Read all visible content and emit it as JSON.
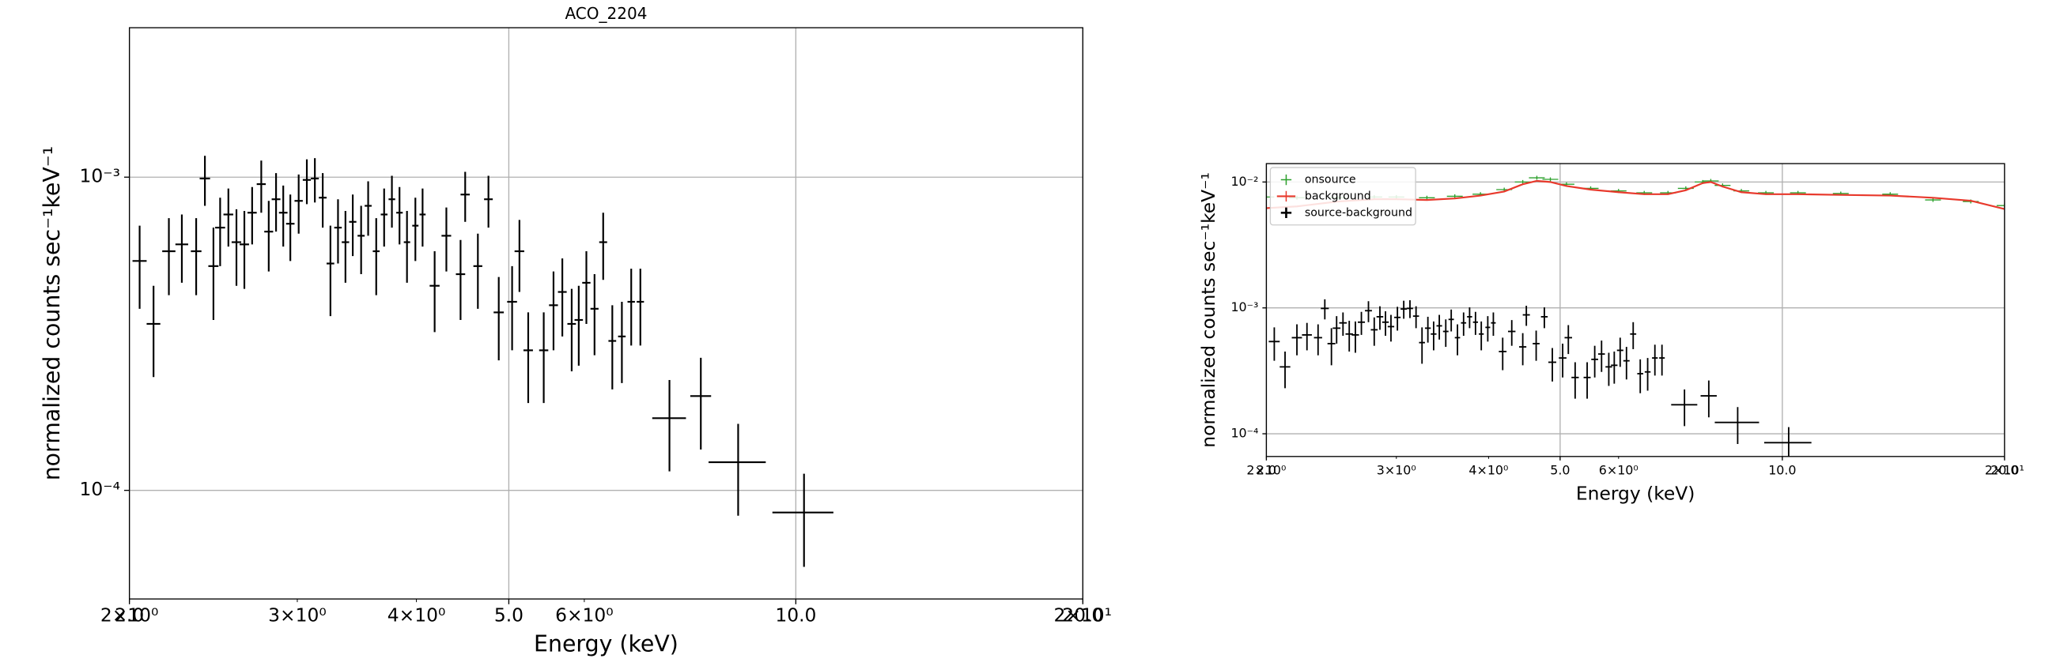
{
  "chart_data": [
    {
      "type": "errorbar",
      "title": "ACO_2204",
      "xlabel": "Energy (keV)",
      "ylabel": "normalized counts sec⁻¹keV⁻¹",
      "log_x": true,
      "log_y": true,
      "grid": true,
      "xlim": [
        2,
        20
      ],
      "ylim": [
        4.5e-05,
        0.003
      ],
      "xticks": [
        {
          "value": 2,
          "label": "2.0"
        },
        {
          "value": 5,
          "label": "5.0"
        },
        {
          "value": 10,
          "label": "10.0"
        },
        {
          "value": 20,
          "label": "20.0"
        }
      ],
      "xminor_ticks": [
        {
          "value": 2,
          "label": "2×10⁰"
        },
        {
          "value": 3,
          "label": "3×10⁰"
        },
        {
          "value": 4,
          "label": "4×10⁰"
        },
        {
          "value": 6,
          "label": "6×10⁰"
        },
        {
          "value": 20,
          "label": "2×10¹"
        }
      ],
      "yticks": [
        {
          "value": 0.001,
          "label": "10⁻³"
        },
        {
          "value": 0.0001,
          "label": "10⁻⁴"
        }
      ],
      "series": [
        {
          "kind": "errorbar",
          "color": "#000000",
          "x": [
            2.05,
            2.12,
            2.2,
            2.27,
            2.35,
            2.4,
            2.45,
            2.49,
            2.54,
            2.59,
            2.64,
            2.69,
            2.75,
            2.8,
            2.85,
            2.9,
            2.95,
            3.01,
            3.07,
            3.13,
            3.19,
            3.25,
            3.31,
            3.37,
            3.43,
            3.5,
            3.56,
            3.63,
            3.7,
            3.77,
            3.84,
            3.91,
            3.99,
            4.06,
            4.18,
            4.3,
            4.45,
            4.5,
            4.64,
            4.76,
            4.88,
            5.04,
            5.13,
            5.24,
            5.44,
            5.57,
            5.69,
            5.82,
            5.92,
            6.03,
            6.15,
            6.28,
            6.42,
            6.57,
            6.72,
            6.87,
            7.37,
            7.95,
            8.7,
            10.2
          ],
          "values": [
            0.00054,
            0.00034,
            0.00058,
            0.00061,
            0.00058,
            0.00099,
            0.00052,
            0.00069,
            0.00076,
            0.00062,
            0.00061,
            0.00077,
            0.00095,
            0.00067,
            0.00085,
            0.00077,
            0.00071,
            0.00084,
            0.00098,
            0.00099,
            0.00086,
            0.00053,
            0.00069,
            0.00062,
            0.00072,
            0.00065,
            0.00081,
            0.00058,
            0.00076,
            0.00085,
            0.00077,
            0.00062,
            0.0007,
            0.00076,
            0.00045,
            0.00065,
            0.00049,
            0.00088,
            0.00052,
            0.00085,
            0.00037,
            0.0004,
            0.00058,
            0.00028,
            0.00028,
            0.00039,
            0.00043,
            0.00034,
            0.00035,
            0.00046,
            0.00038,
            0.00062,
            0.0003,
            0.00031,
            0.0004,
            0.0004,
            0.00017,
            0.0002,
            0.000123,
            8.5e-05
          ],
          "yerr": [
            0.00016,
            0.00011,
            0.00016,
            0.00015,
            0.00016,
            0.00018,
            0.00017,
            0.00017,
            0.00016,
            0.00017,
            0.00017,
            0.00016,
            0.00018,
            0.00017,
            0.00018,
            0.00017,
            0.00017,
            0.00018,
            0.00016,
            0.00016,
            0.00017,
            0.00017,
            0.00016,
            0.00016,
            0.00016,
            0.00016,
            0.00016,
            0.00016,
            0.00016,
            0.00016,
            0.00016,
            0.00016,
            0.00016,
            0.00016,
            0.00013,
            0.00015,
            0.00014,
            0.00016,
            0.00014,
            0.00016,
            0.00011,
            0.00012,
            0.00015,
            9e-05,
            9e-05,
            0.00011,
            0.00012,
            0.0001,
            0.0001,
            0.00012,
            0.00011,
            0.00015,
            9e-05,
            9e-05,
            0.00011,
            0.00011,
            5.5e-05,
            6.5e-05,
            4e-05,
            2.8e-05
          ],
          "xerr": [
            0.035,
            0.035,
            0.035,
            0.035,
            0.03,
            0.03,
            0.03,
            0.03,
            0.03,
            0.03,
            0.03,
            0.03,
            0.03,
            0.03,
            0.03,
            0.03,
            0.03,
            0.03,
            0.03,
            0.03,
            0.03,
            0.03,
            0.03,
            0.03,
            0.03,
            0.03,
            0.03,
            0.03,
            0.03,
            0.03,
            0.03,
            0.03,
            0.03,
            0.03,
            0.05,
            0.05,
            0.05,
            0.05,
            0.05,
            0.05,
            0.06,
            0.06,
            0.06,
            0.06,
            0.06,
            0.06,
            0.06,
            0.06,
            0.06,
            0.06,
            0.06,
            0.06,
            0.06,
            0.06,
            0.06,
            0.06,
            0.3,
            0.2,
            0.6,
            0.75
          ]
        }
      ]
    },
    {
      "type": "errorbar",
      "xlabel": "Energy (keV)",
      "ylabel": "normalized counts sec⁻¹keV⁻¹",
      "log_x": true,
      "log_y": true,
      "grid": true,
      "legend": "upper left",
      "xlim": [
        2,
        20
      ],
      "ylim": [
        6.6e-05,
        0.014
      ],
      "xticks": [
        {
          "value": 2,
          "label": "2.0"
        },
        {
          "value": 5,
          "label": "5.0"
        },
        {
          "value": 10,
          "label": "10.0"
        },
        {
          "value": 20,
          "label": "20.0"
        }
      ],
      "xminor_ticks": [
        {
          "value": 2,
          "label": "2×10⁰"
        },
        {
          "value": 3,
          "label": "3×10⁰"
        },
        {
          "value": 4,
          "label": "4×10⁰"
        },
        {
          "value": 6,
          "label": "6×10⁰"
        },
        {
          "value": 20,
          "label": "2×10¹"
        }
      ],
      "yticks": [
        {
          "value": 0.01,
          "label": "10⁻²"
        },
        {
          "value": 0.001,
          "label": "10⁻³"
        },
        {
          "value": 0.0001,
          "label": "10⁻⁴"
        }
      ],
      "series": [
        {
          "name": "onsource",
          "kind": "marker",
          "color": "#2ca02c",
          "x": [
            2.0,
            2.2,
            2.5,
            2.8,
            3.0,
            3.3,
            3.6,
            3.9,
            4.2,
            4.45,
            4.65,
            4.85,
            5.1,
            5.5,
            6.0,
            6.5,
            7.0,
            7.4,
            7.8,
            8.0,
            8.3,
            8.8,
            9.5,
            10.5,
            12,
            14,
            16,
            18,
            20
          ],
          "values": [
            0.0076,
            0.0075,
            0.0075,
            0.0076,
            0.0076,
            0.0075,
            0.0077,
            0.008,
            0.0087,
            0.01,
            0.0108,
            0.0105,
            0.0096,
            0.0089,
            0.0085,
            0.0082,
            0.0082,
            0.0089,
            0.01,
            0.0102,
            0.0094,
            0.0085,
            0.0082,
            0.0082,
            0.0081,
            0.008,
            0.0072,
            0.007,
            0.0065
          ]
        },
        {
          "name": "background",
          "kind": "line",
          "color": "#e8392c",
          "x": [
            2.0,
            2.2,
            2.5,
            2.8,
            3.0,
            3.3,
            3.6,
            3.9,
            4.2,
            4.45,
            4.65,
            4.85,
            5.1,
            5.5,
            6.0,
            6.5,
            7.0,
            7.4,
            7.8,
            8.0,
            8.3,
            8.8,
            9.5,
            10.5,
            12,
            14,
            16,
            18,
            20
          ],
          "values": [
            0.0062,
            0.0064,
            0.007,
            0.0073,
            0.0073,
            0.0072,
            0.0074,
            0.0078,
            0.0084,
            0.0096,
            0.0102,
            0.01,
            0.0093,
            0.0087,
            0.0083,
            0.008,
            0.008,
            0.0086,
            0.0098,
            0.01,
            0.0092,
            0.0083,
            0.008,
            0.008,
            0.0079,
            0.0078,
            0.0075,
            0.0071,
            0.0061
          ]
        },
        {
          "name": "source-background",
          "kind": "errorbar",
          "color": "#000000",
          "x": [
            2.05,
            2.12,
            2.2,
            2.27,
            2.35,
            2.4,
            2.45,
            2.49,
            2.54,
            2.59,
            2.64,
            2.69,
            2.75,
            2.8,
            2.85,
            2.9,
            2.95,
            3.01,
            3.07,
            3.13,
            3.19,
            3.25,
            3.31,
            3.37,
            3.43,
            3.5,
            3.56,
            3.63,
            3.7,
            3.77,
            3.84,
            3.91,
            3.99,
            4.06,
            4.18,
            4.3,
            4.45,
            4.5,
            4.64,
            4.76,
            4.88,
            5.04,
            5.13,
            5.24,
            5.44,
            5.57,
            5.69,
            5.82,
            5.92,
            6.03,
            6.15,
            6.28,
            6.42,
            6.57,
            6.72,
            6.87,
            7.37,
            7.95,
            8.7,
            10.2
          ],
          "values": [
            0.00054,
            0.00034,
            0.00058,
            0.00061,
            0.00058,
            0.00099,
            0.00052,
            0.00069,
            0.00076,
            0.00062,
            0.00061,
            0.00077,
            0.00095,
            0.00067,
            0.00085,
            0.00077,
            0.00071,
            0.00084,
            0.00098,
            0.00099,
            0.00086,
            0.00053,
            0.00069,
            0.00062,
            0.00072,
            0.00065,
            0.00081,
            0.00058,
            0.00076,
            0.00085,
            0.00077,
            0.00062,
            0.0007,
            0.00076,
            0.00045,
            0.00065,
            0.00049,
            0.00088,
            0.00052,
            0.00085,
            0.00037,
            0.0004,
            0.00058,
            0.00028,
            0.00028,
            0.00039,
            0.00043,
            0.00034,
            0.00035,
            0.00046,
            0.00038,
            0.00062,
            0.0003,
            0.00031,
            0.0004,
            0.0004,
            0.00017,
            0.0002,
            0.000123,
            8.5e-05
          ],
          "yerr": [
            0.00016,
            0.00011,
            0.00016,
            0.00015,
            0.00016,
            0.00018,
            0.00017,
            0.00017,
            0.00016,
            0.00017,
            0.00017,
            0.00016,
            0.00018,
            0.00017,
            0.00018,
            0.00017,
            0.00017,
            0.00018,
            0.00016,
            0.00016,
            0.00017,
            0.00017,
            0.00016,
            0.00016,
            0.00016,
            0.00016,
            0.00016,
            0.00016,
            0.00016,
            0.00016,
            0.00016,
            0.00016,
            0.00016,
            0.00016,
            0.00013,
            0.00015,
            0.00014,
            0.00016,
            0.00014,
            0.00016,
            0.00011,
            0.00012,
            0.00015,
            9e-05,
            9e-05,
            0.00011,
            0.00012,
            0.0001,
            0.0001,
            0.00012,
            0.00011,
            0.00015,
            9e-05,
            9e-05,
            0.00011,
            0.00011,
            5.5e-05,
            6.5e-05,
            4e-05,
            2.8e-05
          ],
          "xerr": [
            0.035,
            0.035,
            0.035,
            0.035,
            0.03,
            0.03,
            0.03,
            0.03,
            0.03,
            0.03,
            0.03,
            0.03,
            0.03,
            0.03,
            0.03,
            0.03,
            0.03,
            0.03,
            0.03,
            0.03,
            0.03,
            0.03,
            0.03,
            0.03,
            0.03,
            0.03,
            0.03,
            0.03,
            0.03,
            0.03,
            0.03,
            0.03,
            0.03,
            0.03,
            0.05,
            0.05,
            0.05,
            0.05,
            0.05,
            0.05,
            0.06,
            0.06,
            0.06,
            0.06,
            0.06,
            0.06,
            0.06,
            0.06,
            0.06,
            0.06,
            0.06,
            0.06,
            0.06,
            0.06,
            0.06,
            0.06,
            0.3,
            0.2,
            0.6,
            0.75
          ]
        }
      ]
    }
  ]
}
